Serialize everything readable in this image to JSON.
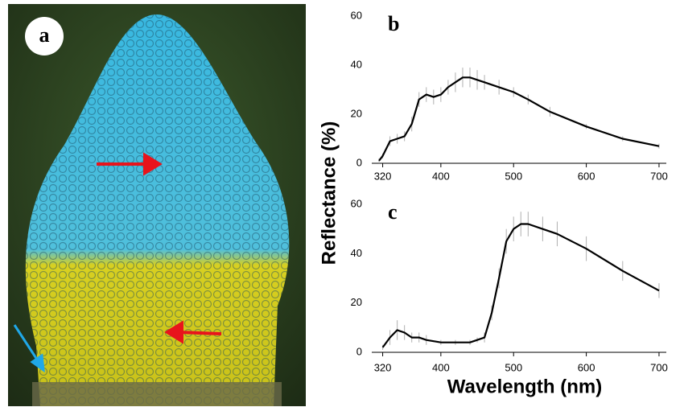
{
  "photo_label": "a",
  "ylabel": "Reflectance (%)",
  "xlabel": "Wavelength (nm)",
  "chart_data": [
    {
      "type": "line",
      "panel_label": "b",
      "color": "#000000",
      "error_color": "#b0b0b0",
      "xlim": [
        305,
        710
      ],
      "xticks": [
        320,
        400,
        500,
        600,
        700
      ],
      "ylim": [
        0,
        60
      ],
      "yticks": [
        0,
        20,
        40,
        60
      ],
      "x": [
        315,
        320,
        330,
        340,
        350,
        360,
        370,
        380,
        390,
        400,
        410,
        420,
        430,
        440,
        450,
        460,
        480,
        500,
        520,
        550,
        600,
        650,
        700
      ],
      "series": [
        {
          "values": [
            1,
            3,
            9,
            10,
            11,
            16,
            26,
            28,
            27,
            28,
            31,
            33,
            35,
            35,
            34,
            33,
            31,
            29,
            26,
            21,
            15,
            10,
            7
          ],
          "errors": [
            1,
            1,
            2,
            2,
            2,
            3,
            3,
            3,
            3,
            3,
            3,
            4,
            4,
            4,
            4,
            3,
            3,
            2,
            2,
            2,
            1,
            1,
            1
          ]
        }
      ]
    },
    {
      "type": "line",
      "panel_label": "c",
      "color": "#000000",
      "error_color": "#b0b0b0",
      "xlim": [
        305,
        710
      ],
      "xticks": [
        320,
        400,
        500,
        600,
        700
      ],
      "ylim": [
        0,
        60
      ],
      "yticks": [
        0,
        20,
        40,
        60
      ],
      "x": [
        320,
        330,
        340,
        350,
        360,
        370,
        380,
        400,
        420,
        440,
        450,
        460,
        470,
        480,
        490,
        500,
        510,
        520,
        540,
        560,
        600,
        650,
        700
      ],
      "series": [
        {
          "values": [
            2,
            6,
            9,
            8,
            6,
            6,
            5,
            4,
            4,
            4,
            5,
            6,
            16,
            30,
            45,
            50,
            52,
            52,
            50,
            48,
            42,
            33,
            25
          ],
          "errors": [
            1,
            3,
            4,
            3,
            2,
            2,
            2,
            1,
            1,
            1,
            1,
            2,
            3,
            4,
            5,
            5,
            5,
            5,
            5,
            5,
            5,
            4,
            3
          ]
        }
      ]
    }
  ]
}
